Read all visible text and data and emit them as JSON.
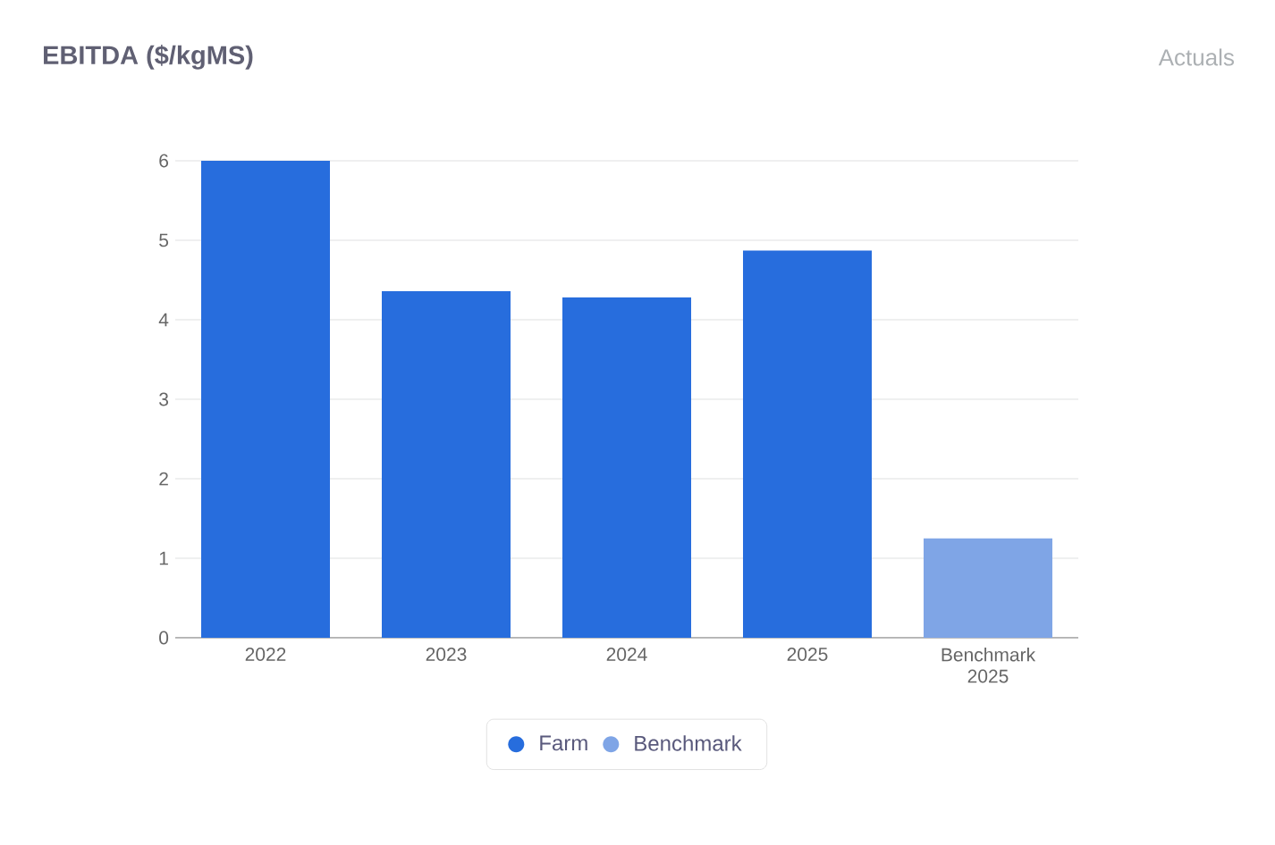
{
  "chart_data": {
    "type": "bar",
    "title": "EBITDA ($/kgMS)",
    "subtitle": "Actuals",
    "categories": [
      "2022",
      "2023",
      "2024",
      "2025",
      "Benchmark 2025"
    ],
    "series": [
      {
        "name": "Farm",
        "color": "#276ddd",
        "values": [
          6.0,
          4.36,
          4.28,
          4.87,
          null
        ]
      },
      {
        "name": "Benchmark",
        "color": "#7fa5e6",
        "values": [
          null,
          null,
          null,
          null,
          1.25
        ]
      }
    ],
    "ylim": [
      0,
      6
    ],
    "yticks": [
      0,
      1,
      2,
      3,
      4,
      5,
      6
    ],
    "grid": "y",
    "legend": "bottom"
  }
}
